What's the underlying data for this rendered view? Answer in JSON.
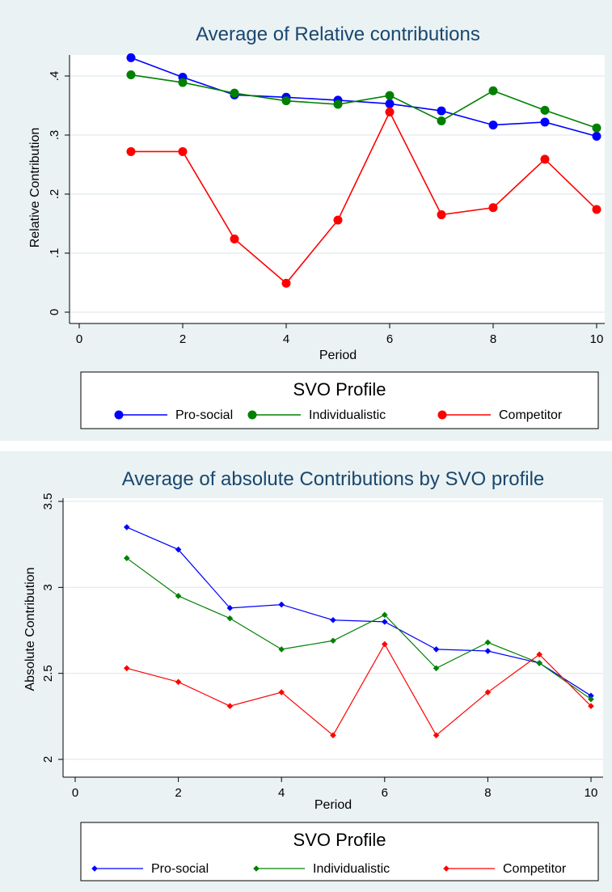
{
  "chart_data": [
    {
      "type": "line",
      "title": "Average of Relative contributions",
      "xlabel": "Period",
      "ylabel": "Relative Contribution",
      "xlim": [
        0,
        10
      ],
      "ylim": [
        0,
        0.4
      ],
      "xticks": [
        0,
        2,
        4,
        6,
        8,
        10
      ],
      "xtick_labels": [
        "0",
        "2",
        "4",
        "6",
        "8",
        "10"
      ],
      "yticks": [
        0,
        0.1,
        0.2,
        0.3,
        0.4
      ],
      "ytick_labels": [
        "0",
        ".1",
        ".2",
        ".3",
        ".4"
      ],
      "grid": true,
      "marker": "circle",
      "legend_title": "SVO Profile",
      "legend_position": "bottom",
      "x": [
        1,
        2,
        3,
        4,
        5,
        6,
        7,
        8,
        9,
        10
      ],
      "series": [
        {
          "name": "Pro-social",
          "color": "#0000ff",
          "values": [
            0.431,
            0.398,
            0.368,
            0.364,
            0.359,
            0.353,
            0.341,
            0.317,
            0.322,
            0.298
          ]
        },
        {
          "name": "Individualistic",
          "color": "#008000",
          "values": [
            0.402,
            0.389,
            0.371,
            0.358,
            0.352,
            0.367,
            0.324,
            0.375,
            0.342,
            0.312
          ]
        },
        {
          "name": "Competitor",
          "color": "#ff0000",
          "values": [
            0.272,
            0.272,
            0.124,
            0.049,
            0.156,
            0.339,
            0.165,
            0.177,
            0.259,
            0.174
          ]
        }
      ]
    },
    {
      "type": "line",
      "title": "Average of absolute Contributions by SVO profile",
      "xlabel": "Period",
      "ylabel": "Absolute Contribution",
      "xlim": [
        0,
        10
      ],
      "ylim": [
        2,
        3.5
      ],
      "xticks": [
        0,
        2,
        4,
        6,
        8,
        10
      ],
      "xtick_labels": [
        "0",
        "2",
        "4",
        "6",
        "8",
        "10"
      ],
      "yticks": [
        2,
        2.5,
        3,
        3.5
      ],
      "ytick_labels": [
        "2",
        "2.5",
        "3",
        "3.5"
      ],
      "grid": true,
      "marker": "diamond",
      "legend_title": "SVO Profile",
      "legend_position": "bottom",
      "x": [
        1,
        2,
        3,
        4,
        5,
        6,
        7,
        8,
        9,
        10
      ],
      "series": [
        {
          "name": "Pro-social",
          "color": "#0000ff",
          "values": [
            3.35,
            3.22,
            2.88,
            2.9,
            2.81,
            2.8,
            2.64,
            2.63,
            2.56,
            2.37
          ]
        },
        {
          "name": "Individualistic",
          "color": "#008000",
          "values": [
            3.17,
            2.95,
            2.82,
            2.64,
            2.69,
            2.84,
            2.53,
            2.68,
            2.56,
            2.35
          ]
        },
        {
          "name": "Competitor",
          "color": "#ff0000",
          "values": [
            2.53,
            2.45,
            2.31,
            2.39,
            2.14,
            2.67,
            2.14,
            2.39,
            2.61,
            2.31
          ]
        }
      ]
    }
  ]
}
